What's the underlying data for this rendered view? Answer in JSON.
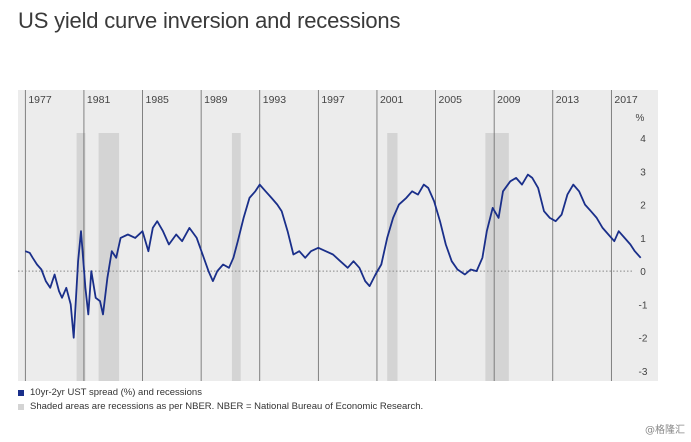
{
  "title": "US yield curve inversion and recessions",
  "watermark": "@格隆汇",
  "colors": {
    "line": "#1a2f8a",
    "panel_bg": "#ececec",
    "recession": "#d4d4d4",
    "gridline": "#666666",
    "zero_line": "#888888"
  },
  "legend": {
    "series": "10yr-2yr UST spread (%) and recessions",
    "shaded": "Shaded areas are recessions as per NBER. NBER = National Bureau of Economic Research."
  },
  "chart_data": {
    "type": "line",
    "title": "US yield curve inversion and recessions",
    "xlabel": "",
    "ylabel": "%",
    "xlim": [
      1976.0,
      2019.0
    ],
    "ylim": [
      -3,
      4
    ],
    "x_ticks": [
      "1977",
      "1981",
      "1985",
      "1989",
      "1993",
      "1997",
      "2001",
      "2005",
      "2009",
      "2013",
      "2017"
    ],
    "y_ticks": [
      "4",
      "3",
      "2",
      "1",
      "0",
      "-1",
      "-2",
      "-3"
    ],
    "grid": "vertical lines at labelled years; dotted line at 0",
    "recessions": [
      {
        "start": 1980.0,
        "end": 1980.6
      },
      {
        "start": 1981.5,
        "end": 1982.9
      },
      {
        "start": 1990.6,
        "end": 1991.2
      },
      {
        "start": 2001.2,
        "end": 2001.9
      },
      {
        "start": 2007.9,
        "end": 2009.5
      }
    ],
    "series": [
      {
        "values": [
          [
            1976.5,
            0.6
          ],
          [
            1976.8,
            0.55
          ],
          [
            1977.0,
            0.4
          ],
          [
            1977.3,
            0.2
          ],
          [
            1977.6,
            0.05
          ],
          [
            1977.9,
            -0.3
          ],
          [
            1978.2,
            -0.5
          ],
          [
            1978.5,
            -0.1
          ],
          [
            1978.8,
            -0.6
          ],
          [
            1979.0,
            -0.8
          ],
          [
            1979.3,
            -0.5
          ],
          [
            1979.6,
            -1.0
          ],
          [
            1979.8,
            -2.0
          ],
          [
            1980.1,
            0.3
          ],
          [
            1980.3,
            1.2
          ],
          [
            1980.6,
            -0.5
          ],
          [
            1980.8,
            -1.3
          ],
          [
            1981.0,
            0.0
          ],
          [
            1981.3,
            -0.8
          ],
          [
            1981.6,
            -0.9
          ],
          [
            1981.8,
            -1.3
          ],
          [
            1982.1,
            -0.2
          ],
          [
            1982.4,
            0.6
          ],
          [
            1982.7,
            0.4
          ],
          [
            1983.0,
            1.0
          ],
          [
            1983.5,
            1.1
          ],
          [
            1984.0,
            1.0
          ],
          [
            1984.5,
            1.2
          ],
          [
            1984.9,
            0.6
          ],
          [
            1985.2,
            1.3
          ],
          [
            1985.5,
            1.5
          ],
          [
            1985.9,
            1.2
          ],
          [
            1986.3,
            0.8
          ],
          [
            1986.8,
            1.1
          ],
          [
            1987.2,
            0.9
          ],
          [
            1987.7,
            1.3
          ],
          [
            1988.2,
            1.0
          ],
          [
            1988.6,
            0.5
          ],
          [
            1989.0,
            0.0
          ],
          [
            1989.3,
            -0.3
          ],
          [
            1989.6,
            0.0
          ],
          [
            1990.0,
            0.2
          ],
          [
            1990.4,
            0.1
          ],
          [
            1990.7,
            0.4
          ],
          [
            1991.0,
            0.9
          ],
          [
            1991.4,
            1.6
          ],
          [
            1991.8,
            2.2
          ],
          [
            1992.2,
            2.4
          ],
          [
            1992.5,
            2.6
          ],
          [
            1992.9,
            2.4
          ],
          [
            1993.3,
            2.2
          ],
          [
            1993.7,
            2.0
          ],
          [
            1994.0,
            1.8
          ],
          [
            1994.4,
            1.2
          ],
          [
            1994.8,
            0.5
          ],
          [
            1995.2,
            0.6
          ],
          [
            1995.6,
            0.4
          ],
          [
            1996.0,
            0.6
          ],
          [
            1996.5,
            0.7
          ],
          [
            1997.0,
            0.6
          ],
          [
            1997.5,
            0.5
          ],
          [
            1998.0,
            0.3
          ],
          [
            1998.5,
            0.1
          ],
          [
            1998.9,
            0.3
          ],
          [
            1999.3,
            0.1
          ],
          [
            1999.7,
            -0.3
          ],
          [
            2000.0,
            -0.45
          ],
          [
            2000.4,
            -0.1
          ],
          [
            2000.8,
            0.2
          ],
          [
            2001.2,
            1.0
          ],
          [
            2001.6,
            1.6
          ],
          [
            2002.0,
            2.0
          ],
          [
            2002.5,
            2.2
          ],
          [
            2002.9,
            2.4
          ],
          [
            2003.3,
            2.3
          ],
          [
            2003.7,
            2.6
          ],
          [
            2004.0,
            2.5
          ],
          [
            2004.4,
            2.1
          ],
          [
            2004.8,
            1.5
          ],
          [
            2005.2,
            0.8
          ],
          [
            2005.6,
            0.3
          ],
          [
            2006.0,
            0.05
          ],
          [
            2006.5,
            -0.1
          ],
          [
            2006.9,
            0.05
          ],
          [
            2007.3,
            0.0
          ],
          [
            2007.7,
            0.4
          ],
          [
            2008.0,
            1.2
          ],
          [
            2008.4,
            1.9
          ],
          [
            2008.8,
            1.6
          ],
          [
            2009.1,
            2.4
          ],
          [
            2009.6,
            2.7
          ],
          [
            2010.0,
            2.8
          ],
          [
            2010.4,
            2.6
          ],
          [
            2010.8,
            2.9
          ],
          [
            2011.1,
            2.8
          ],
          [
            2011.5,
            2.5
          ],
          [
            2011.9,
            1.8
          ],
          [
            2012.3,
            1.6
          ],
          [
            2012.7,
            1.5
          ],
          [
            2013.1,
            1.7
          ],
          [
            2013.5,
            2.3
          ],
          [
            2013.9,
            2.6
          ],
          [
            2014.3,
            2.4
          ],
          [
            2014.7,
            2.0
          ],
          [
            2015.1,
            1.8
          ],
          [
            2015.5,
            1.6
          ],
          [
            2015.9,
            1.3
          ],
          [
            2016.3,
            1.1
          ],
          [
            2016.7,
            0.9
          ],
          [
            2017.0,
            1.2
          ],
          [
            2017.4,
            1.0
          ],
          [
            2017.8,
            0.8
          ],
          [
            2018.1,
            0.6
          ],
          [
            2018.5,
            0.4
          ]
        ]
      }
    ]
  }
}
